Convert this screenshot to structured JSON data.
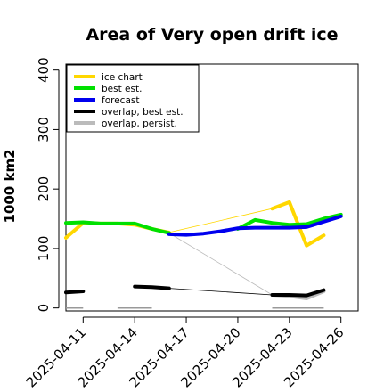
{
  "chart_data": {
    "type": "line",
    "title": "Area of Very open drift ice",
    "ylabel": "1000 km2",
    "xlabel": "",
    "xlim": [
      "2025-04-10",
      "2025-04-27"
    ],
    "ylim": [
      -5,
      410
    ],
    "yticks": [
      0,
      100,
      200,
      300,
      400
    ],
    "xticks": [
      "2025-04-11",
      "2025-04-14",
      "2025-04-17",
      "2025-04-20",
      "2025-04-23",
      "2025-04-26"
    ],
    "highlight_tick": "2025-04-17",
    "highlight_color": "#228B22",
    "grid": false,
    "legend_position": "top-left",
    "legend": [
      {
        "label": "ice chart",
        "color": "#FFD700"
      },
      {
        "label": "best est.",
        "color": "#00E000"
      },
      {
        "label": "forecast",
        "color": "#0000EE"
      },
      {
        "label": "overlap, best est.",
        "color": "#000000"
      },
      {
        "label": "overlap, persist.",
        "color": "#BBBBBB"
      }
    ],
    "series": [
      {
        "name": "ice chart",
        "color": "#FFD700",
        "x": [
          "2025-04-10",
          "2025-04-11",
          "2025-04-12",
          "2025-04-13",
          "2025-04-14",
          "2025-04-15",
          "2025-04-16",
          "2025-04-22",
          "2025-04-23",
          "2025-04-24",
          "2025-04-25"
        ],
        "y": [
          118,
          143,
          142,
          142,
          140,
          133,
          127,
          167,
          178,
          105,
          122
        ]
      },
      {
        "name": "best est.",
        "color": "#00E000",
        "x": [
          "2025-04-10",
          "2025-04-11",
          "2025-04-12",
          "2025-04-13",
          "2025-04-14",
          "2025-04-15",
          "2025-04-16",
          "2025-04-20",
          "2025-04-21",
          "2025-04-22",
          "2025-04-23",
          "2025-04-24",
          "2025-04-25",
          "2025-04-26"
        ],
        "y": [
          143,
          144,
          142,
          142,
          142,
          133,
          126,
          133,
          148,
          143,
          140,
          141,
          150,
          157
        ]
      },
      {
        "name": "forecast",
        "color": "#0000EE",
        "x": [
          "2025-04-16",
          "2025-04-17",
          "2025-04-18",
          "2025-04-19",
          "2025-04-20",
          "2025-04-21",
          "2025-04-22",
          "2025-04-23",
          "2025-04-24",
          "2025-04-25",
          "2025-04-26"
        ],
        "y": [
          124,
          123,
          125,
          129,
          134,
          135,
          135,
          135,
          136,
          145,
          154
        ]
      },
      {
        "name": "overlap, best est.",
        "color": "#000000",
        "x": [
          "2025-04-10",
          "2025-04-11",
          "2025-04-14",
          "2025-04-15",
          "2025-04-16",
          "2025-04-22",
          "2025-04-23",
          "2025-04-24",
          "2025-04-25"
        ],
        "y": [
          26,
          28,
          36,
          35,
          33,
          22,
          22,
          21,
          30
        ]
      },
      {
        "name": "overlap, persist.",
        "color": "#BBBBBB",
        "x": [
          "2025-04-16",
          "2025-04-22",
          "2025-04-23",
          "2025-04-24",
          "2025-04-25"
        ],
        "y": [
          126,
          22,
          20,
          16,
          28
        ]
      }
    ],
    "thin_connectors": [
      {
        "color": "#FFD700",
        "x": [
          "2025-04-16",
          "2025-04-22"
        ],
        "y": [
          127,
          167
        ]
      },
      {
        "color": "#000000",
        "x": [
          "2025-04-16",
          "2025-04-22"
        ],
        "y": [
          33,
          22
        ]
      },
      {
        "color": "#BBBBBB",
        "x": [
          "2025-04-16",
          "2025-04-22"
        ],
        "y": [
          126,
          22
        ]
      }
    ],
    "zero_segments": [
      {
        "x": [
          "2025-04-10",
          "2025-04-11"
        ],
        "y": [
          0,
          0
        ]
      },
      {
        "x": [
          "2025-04-13",
          "2025-04-15"
        ],
        "y": [
          0,
          0
        ]
      },
      {
        "x": [
          "2025-04-22",
          "2025-04-25"
        ],
        "y": [
          0,
          0
        ]
      }
    ]
  }
}
